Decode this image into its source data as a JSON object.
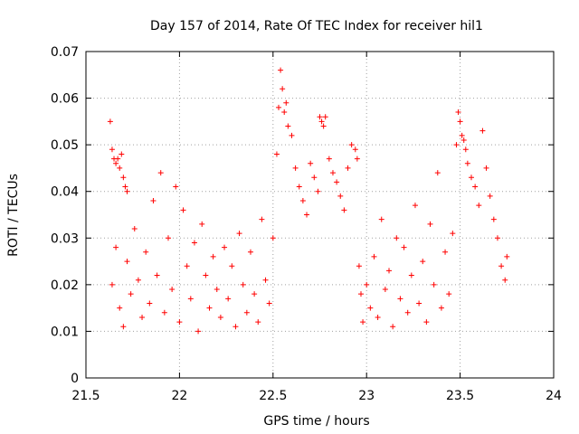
{
  "chart_data": {
    "type": "scatter",
    "title": "Day 157 of 2014, Rate Of TEC Index for receiver hil1",
    "xlabel": "GPS time / hours",
    "ylabel": "ROTI / TECUs",
    "xlim": [
      21.5,
      24
    ],
    "ylim": [
      0,
      0.07
    ],
    "xticks": [
      21.5,
      22,
      22.5,
      23,
      23.5,
      24
    ],
    "xtick_labels": [
      "21.5",
      "22",
      "22.5",
      "23",
      "23.5",
      "24"
    ],
    "yticks": [
      0,
      0.01,
      0.02,
      0.03,
      0.04,
      0.05,
      0.06,
      0.07
    ],
    "ytick_labels": [
      "0",
      "0.01",
      "0.02",
      "0.03",
      "0.04",
      "0.05",
      "0.06",
      "0.07"
    ],
    "grid": true,
    "marker": "+",
    "color": "#ff0000",
    "series": [
      {
        "name": "hil1",
        "x": [
          21.63,
          21.64,
          21.65,
          21.66,
          21.67,
          21.68,
          21.69,
          21.7,
          21.71,
          21.72,
          21.64,
          21.66,
          21.68,
          21.7,
          21.72,
          21.74,
          21.76,
          21.78,
          21.8,
          21.82,
          21.84,
          21.86,
          21.88,
          21.9,
          21.92,
          21.94,
          21.96,
          21.98,
          22.0,
          22.02,
          22.04,
          22.06,
          22.08,
          22.1,
          22.12,
          22.14,
          22.16,
          22.18,
          22.2,
          22.22,
          22.24,
          22.26,
          22.28,
          22.3,
          22.32,
          22.34,
          22.36,
          22.38,
          22.4,
          22.42,
          22.44,
          22.46,
          22.48,
          22.5,
          22.52,
          22.53,
          22.54,
          22.55,
          22.56,
          22.57,
          22.58,
          22.6,
          22.62,
          22.64,
          22.66,
          22.68,
          22.7,
          22.72,
          22.74,
          22.75,
          22.76,
          22.77,
          22.78,
          22.8,
          22.82,
          22.84,
          22.86,
          22.88,
          22.9,
          22.92,
          22.94,
          22.95,
          22.96,
          22.97,
          22.98,
          23.0,
          23.02,
          23.04,
          23.06,
          23.08,
          23.1,
          23.12,
          23.14,
          23.16,
          23.18,
          23.2,
          23.22,
          23.24,
          23.26,
          23.28,
          23.3,
          23.32,
          23.34,
          23.36,
          23.38,
          23.4,
          23.42,
          23.44,
          23.46,
          23.48,
          23.49,
          23.5,
          23.51,
          23.52,
          23.53,
          23.54,
          23.56,
          23.58,
          23.6,
          23.62,
          23.64,
          23.66,
          23.68,
          23.7,
          23.72,
          23.74,
          23.75
        ],
        "y": [
          0.055,
          0.049,
          0.047,
          0.046,
          0.047,
          0.045,
          0.048,
          0.043,
          0.041,
          0.04,
          0.02,
          0.028,
          0.015,
          0.011,
          0.025,
          0.018,
          0.032,
          0.021,
          0.013,
          0.027,
          0.016,
          0.038,
          0.022,
          0.044,
          0.014,
          0.03,
          0.019,
          0.041,
          0.012,
          0.036,
          0.024,
          0.017,
          0.029,
          0.01,
          0.033,
          0.022,
          0.015,
          0.026,
          0.019,
          0.013,
          0.028,
          0.017,
          0.024,
          0.011,
          0.031,
          0.02,
          0.014,
          0.027,
          0.018,
          0.012,
          0.034,
          0.021,
          0.016,
          0.03,
          0.048,
          0.058,
          0.066,
          0.062,
          0.057,
          0.059,
          0.054,
          0.052,
          0.045,
          0.041,
          0.038,
          0.035,
          0.046,
          0.043,
          0.04,
          0.056,
          0.055,
          0.054,
          0.056,
          0.047,
          0.044,
          0.042,
          0.039,
          0.036,
          0.045,
          0.05,
          0.049,
          0.047,
          0.024,
          0.018,
          0.012,
          0.02,
          0.015,
          0.026,
          0.013,
          0.034,
          0.019,
          0.023,
          0.011,
          0.03,
          0.017,
          0.028,
          0.014,
          0.022,
          0.037,
          0.016,
          0.025,
          0.012,
          0.033,
          0.02,
          0.044,
          0.015,
          0.027,
          0.018,
          0.031,
          0.05,
          0.057,
          0.055,
          0.052,
          0.051,
          0.049,
          0.046,
          0.043,
          0.041,
          0.037,
          0.053,
          0.045,
          0.039,
          0.034,
          0.03,
          0.024,
          0.021,
          0.026
        ]
      }
    ]
  }
}
